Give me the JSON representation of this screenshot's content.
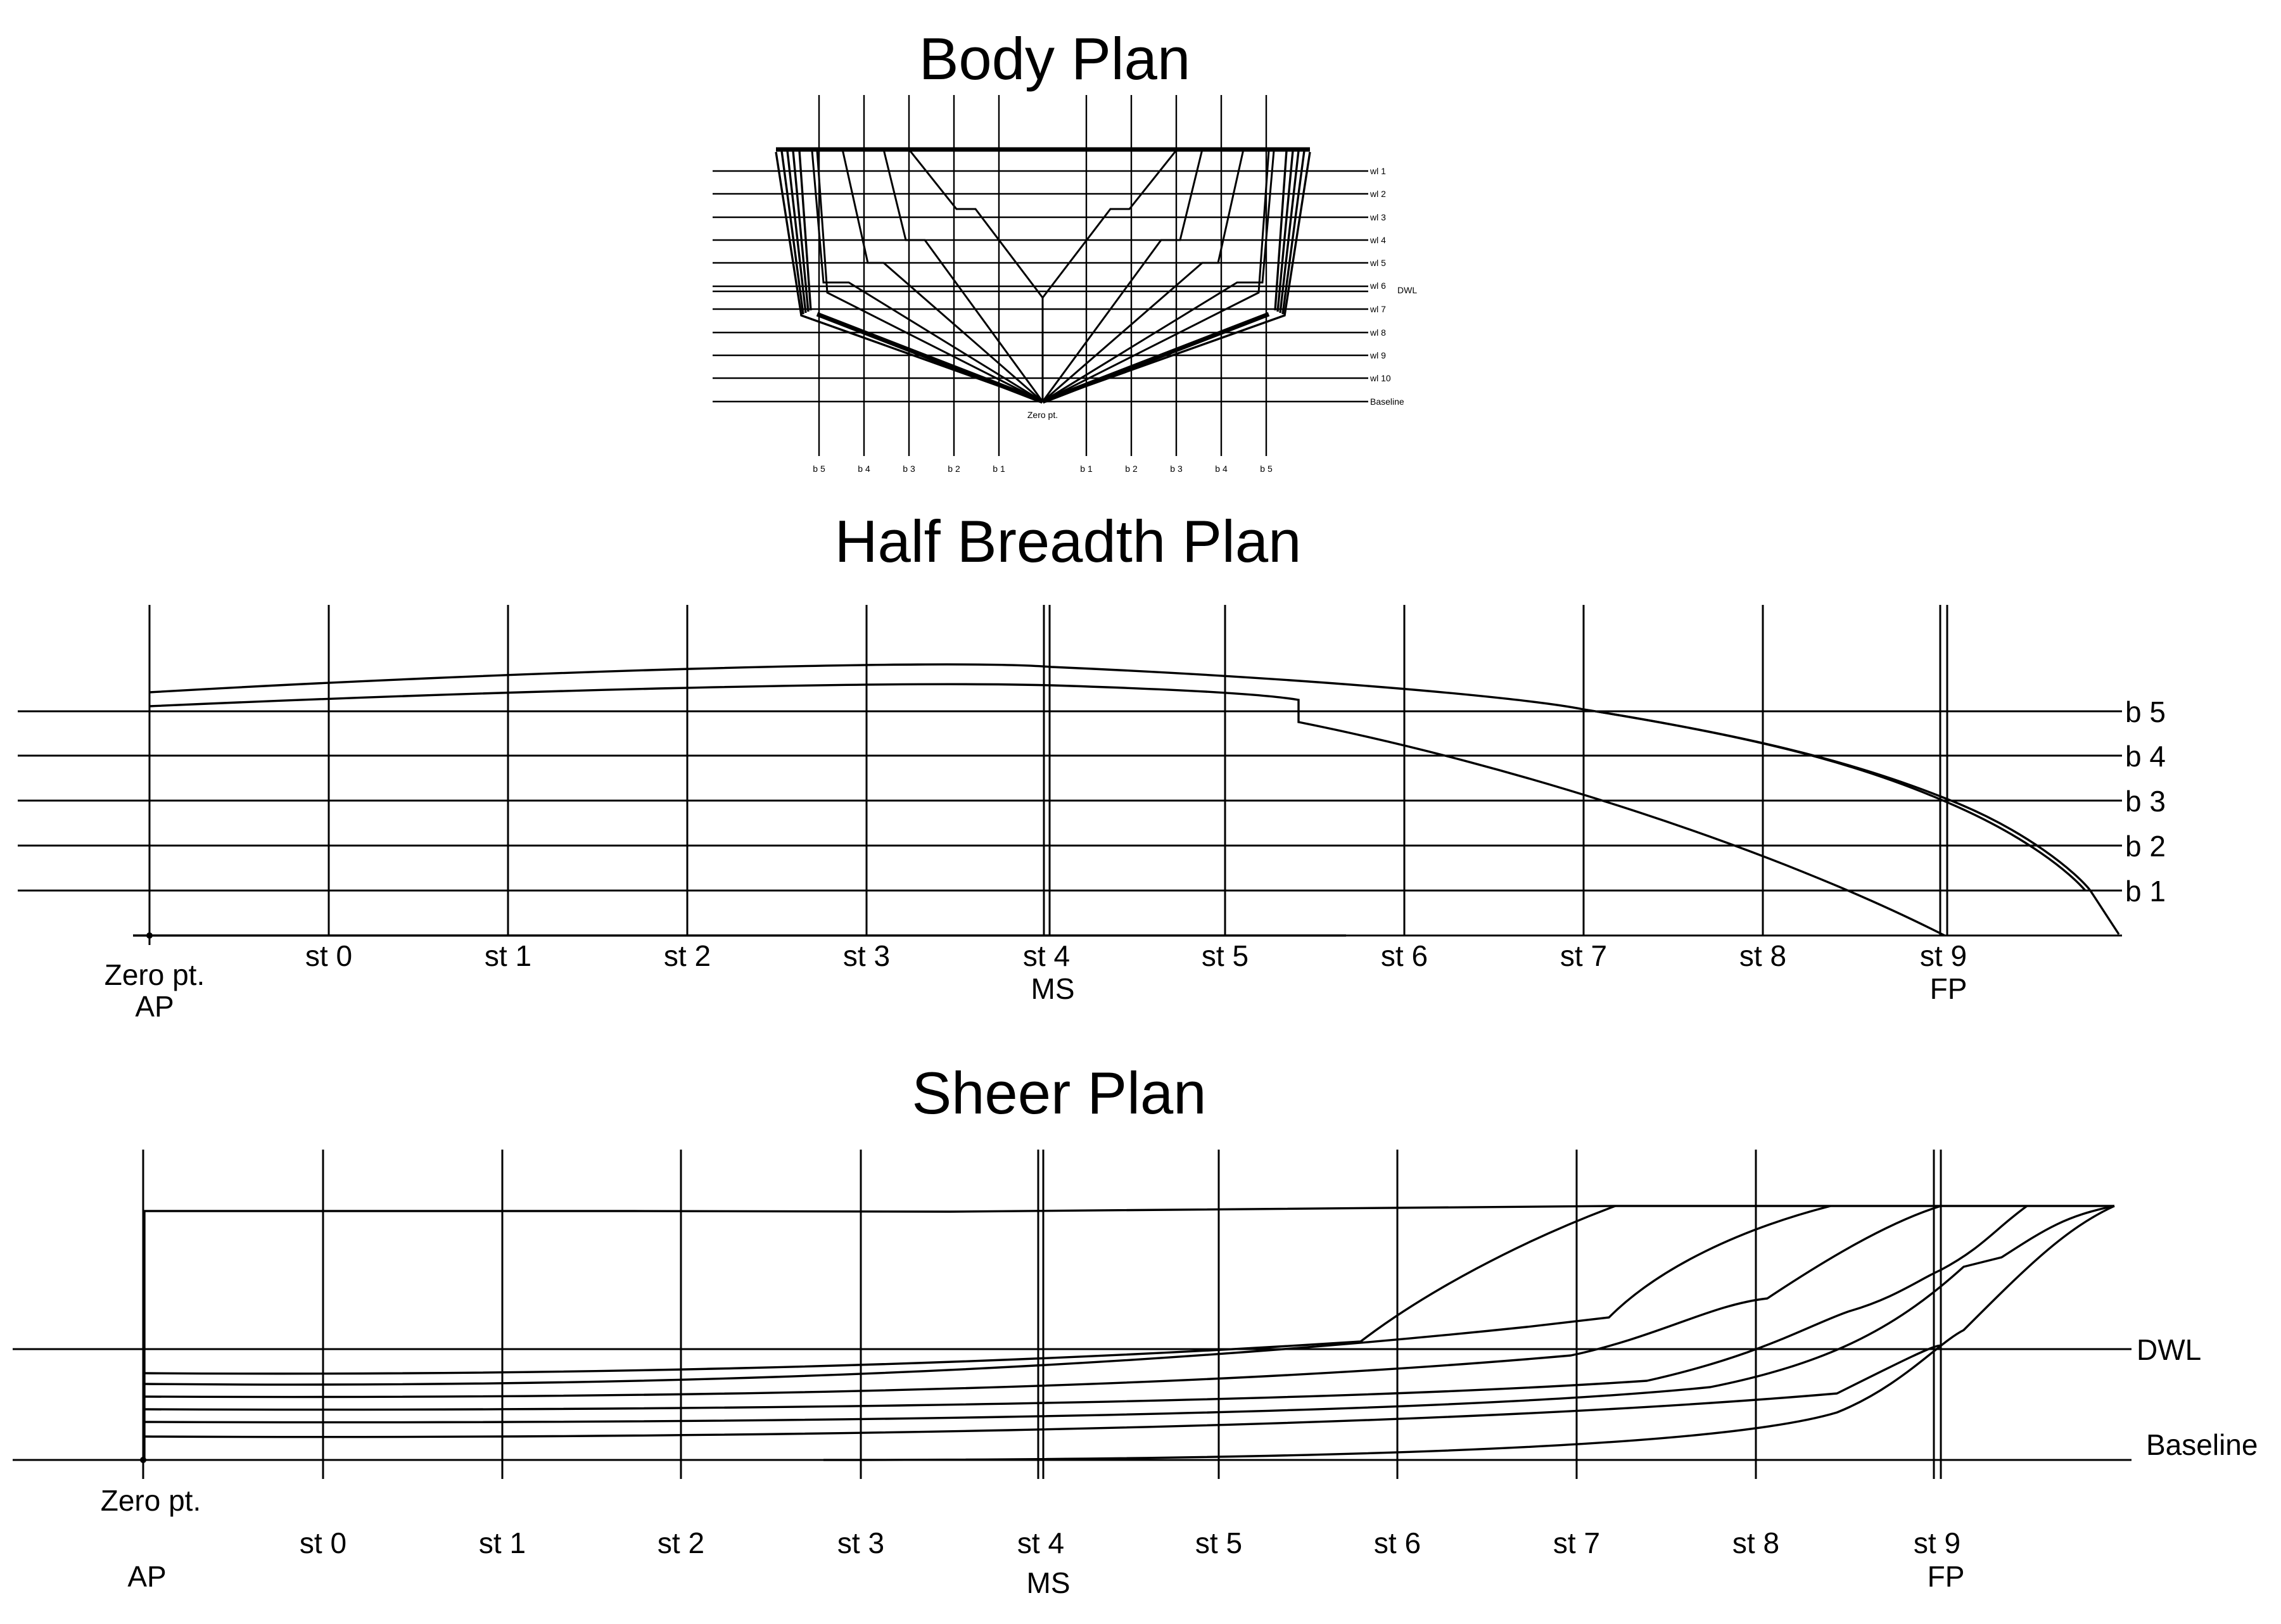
{
  "body_plan": {
    "title": "Body Plan",
    "buttock_labels": [
      "b 5",
      "b 4",
      "b 3",
      "b 2",
      "b 1",
      "b 1",
      "b 2",
      "b 3",
      "b 4",
      "b 5"
    ],
    "waterline_labels": [
      "wl 1",
      "wl 2",
      "wl 3",
      "wl 4",
      "wl 5",
      "wl 6",
      "wl 7",
      "wl 8",
      "wl 9",
      "wl 10",
      "Baseline"
    ],
    "dwl_label": "DWL",
    "zero_label": "Zero pt."
  },
  "half_breadth_plan": {
    "title": "Half Breadth Plan",
    "station_labels": [
      "st 0",
      "st 1",
      "st 2",
      "st 3",
      "st 4",
      "st 5",
      "st 6",
      "st 7",
      "st 8",
      "st 9"
    ],
    "buttock_labels": [
      "b 5",
      "b 4",
      "b 3",
      "b 2",
      "b 1"
    ],
    "zero_label": "Zero pt.",
    "ap_label": "AP",
    "ms_label": "MS",
    "fp_label": "FP"
  },
  "sheer_plan": {
    "title": "Sheer Plan",
    "station_labels": [
      "st 0",
      "st 1",
      "st 2",
      "st 3",
      "st 4",
      "st 5",
      "st 6",
      "st 7",
      "st 8",
      "st 9"
    ],
    "dwl_label": "DWL",
    "baseline_label": "Baseline",
    "zero_label": "Zero pt.",
    "ap_label": "AP",
    "ms_label": "MS",
    "fp_label": "FP"
  }
}
